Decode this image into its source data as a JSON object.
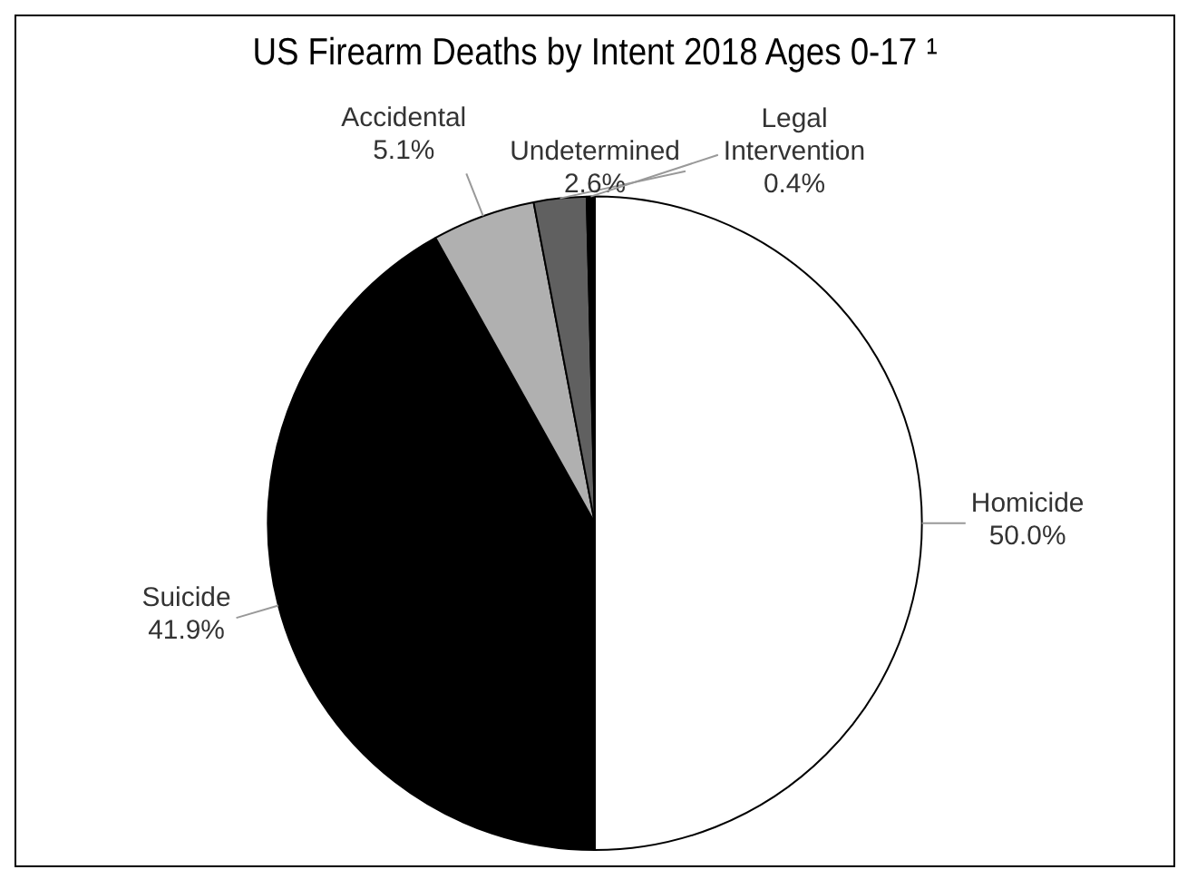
{
  "chart_data": {
    "type": "pie",
    "title": "US Firearm Deaths by Intent 2018 Ages 0-17 ¹",
    "categories": [
      "Homicide",
      "Suicide",
      "Accidental",
      "Undetermined",
      "Legal Intervention"
    ],
    "values": [
      50.0,
      41.9,
      5.1,
      2.6,
      0.4
    ],
    "colors": [
      "#ffffff",
      "#000000",
      "#b0b0b0",
      "#606060",
      "#000000"
    ],
    "value_labels": [
      "50.0%",
      "41.9%",
      "5.1%",
      "2.6%",
      "0.4%"
    ],
    "legend": false
  }
}
